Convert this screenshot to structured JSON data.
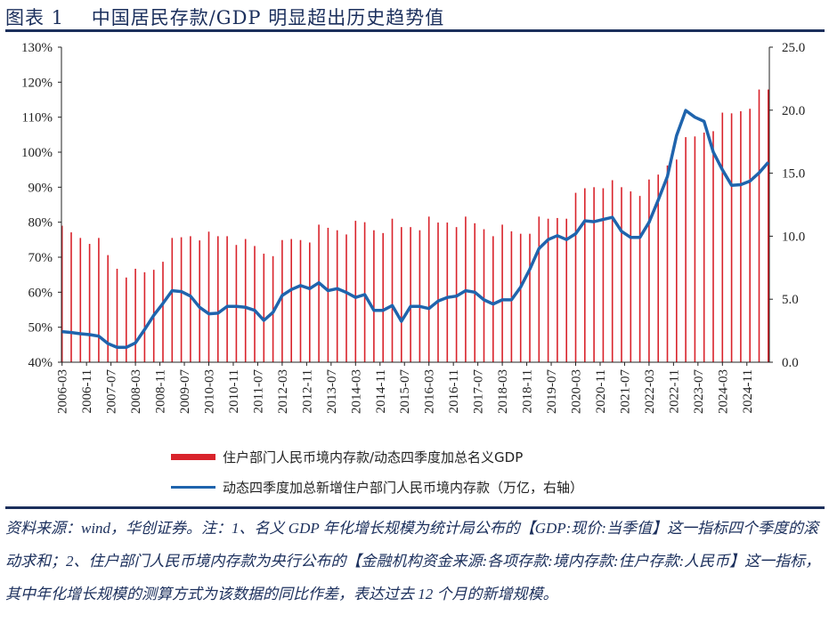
{
  "title": "图表 1    中国居民存款/GDP 明显超出历史趋势值",
  "chart_data": {
    "type": "bar+line",
    "title": "中国居民存款/GDP 明显超出历史趋势值",
    "categories": [
      "2006-03",
      "2006-06",
      "2006-09",
      "2006-12",
      "2007-03",
      "2007-06",
      "2007-09",
      "2007-12",
      "2008-03",
      "2008-06",
      "2008-09",
      "2008-12",
      "2009-03",
      "2009-06",
      "2009-09",
      "2009-12",
      "2010-03",
      "2010-06",
      "2010-09",
      "2010-12",
      "2011-03",
      "2011-06",
      "2011-09",
      "2011-12",
      "2012-03",
      "2012-06",
      "2012-09",
      "2012-12",
      "2013-03",
      "2013-06",
      "2013-09",
      "2013-12",
      "2014-03",
      "2014-06",
      "2014-09",
      "2014-12",
      "2015-03",
      "2015-06",
      "2015-09",
      "2015-12",
      "2016-03",
      "2016-06",
      "2016-09",
      "2016-12",
      "2017-03",
      "2017-06",
      "2017-09",
      "2017-12",
      "2018-03",
      "2018-06",
      "2018-09",
      "2018-12",
      "2019-03",
      "2019-06",
      "2019-09",
      "2019-12",
      "2020-03",
      "2020-06",
      "2020-09",
      "2020-12",
      "2021-03",
      "2021-06",
      "2021-09",
      "2021-12",
      "2022-03",
      "2022-06",
      "2022-09",
      "2022-12",
      "2023-03",
      "2023-06",
      "2023-09",
      "2023-12",
      "2024-03",
      "2024-06",
      "2024-09",
      "2024-12",
      "2025-03",
      "2025-06"
    ],
    "x_tick_labels": [
      "2006-03",
      "2006-11",
      "2007-07",
      "2008-03",
      "2008-11",
      "2009-07",
      "2010-03",
      "2010-11",
      "2011-07",
      "2012-03",
      "2012-11",
      "2013-07",
      "2014-03",
      "2014-11",
      "2015-07",
      "2016-03",
      "2016-11",
      "2017-07",
      "2018-03",
      "2018-11",
      "2019-07",
      "2020-03",
      "2020-11",
      "2021-07",
      "2022-03",
      "2022-11",
      "2023-07",
      "2024-03",
      "2024-11"
    ],
    "y_left": {
      "range": [
        40,
        130
      ],
      "ticks": [
        "40%",
        "50%",
        "60%",
        "70%",
        "80%",
        "90%",
        "100%",
        "110%",
        "120%",
        "130%"
      ]
    },
    "y_right": {
      "range": [
        0,
        25
      ],
      "ticks": [
        "0.0",
        "5.0",
        "10.0",
        "15.0",
        "20.0",
        "25.0"
      ]
    },
    "grid": false,
    "legend_position": "bottom",
    "series": [
      {
        "name": "住户部门人民币境内存款/动态四季度加总名义GDP",
        "type": "bar",
        "axis": "left",
        "unit": "%",
        "color": "#d9232b",
        "values": [
          79.0,
          77.1,
          75.5,
          73.8,
          75.5,
          70.6,
          66.7,
          64.2,
          66.7,
          65.7,
          66.4,
          68.7,
          75.5,
          75.7,
          76.0,
          74.8,
          77.3,
          76.0,
          76.0,
          73.5,
          75.2,
          73.2,
          71.0,
          70.3,
          74.9,
          75.2,
          74.9,
          74.2,
          79.3,
          78.4,
          77.7,
          76.5,
          80.4,
          80.0,
          77.7,
          76.9,
          81.0,
          78.6,
          78.6,
          77.7,
          81.6,
          79.9,
          79.9,
          78.6,
          81.6,
          79.7,
          78.0,
          76.0,
          79.3,
          77.4,
          76.7,
          76.7,
          81.6,
          81.0,
          81.2,
          81.0,
          88.4,
          89.7,
          90.0,
          89.7,
          92.0,
          90.0,
          88.8,
          87.5,
          92.2,
          93.6,
          96.2,
          97.9,
          104.3,
          104.5,
          105.6,
          106.0,
          111.3,
          111.1,
          111.7,
          112.4,
          117.9,
          117.9
        ]
      },
      {
        "name": "动态四季度加总新增住户部门人民币境内存款（万亿，右轴）",
        "type": "line",
        "axis": "right",
        "color": "#1f64ad",
        "values": [
          2.43,
          2.36,
          2.26,
          2.19,
          2.07,
          1.48,
          1.18,
          1.18,
          1.53,
          2.59,
          3.72,
          4.67,
          5.68,
          5.61,
          5.25,
          4.36,
          3.84,
          3.89,
          4.43,
          4.43,
          4.36,
          4.12,
          3.32,
          3.96,
          5.3,
          5.77,
          6.08,
          5.84,
          6.31,
          5.68,
          5.84,
          5.54,
          5.14,
          5.37,
          4.12,
          4.12,
          4.5,
          3.25,
          4.43,
          4.43,
          4.26,
          4.85,
          5.14,
          5.25,
          5.68,
          5.56,
          4.95,
          4.62,
          4.95,
          4.95,
          5.96,
          7.38,
          9.02,
          9.73,
          10.04,
          9.73,
          10.2,
          11.22,
          11.15,
          11.33,
          11.5,
          10.39,
          9.9,
          9.9,
          11.1,
          12.87,
          14.73,
          17.98,
          19.98,
          19.44,
          19.11,
          16.68,
          15.27,
          14.04,
          14.09,
          14.37,
          15.03,
          15.86
        ]
      }
    ]
  },
  "note": "资料来源：wind，华创证券。注：1、名义 GDP 年化增长规模为统计局公布的【GDP:现价:当季值】这一指标四个季度的滚动求和；2、住户部门人民币境内存款为央行公布的【金融机构资金来源:各项存款:境内存款:住户存款:人民币】这一指标，其中年化增长规模的测算方式为该数据的同比作差，表达过去 12 个月的新增规模。"
}
